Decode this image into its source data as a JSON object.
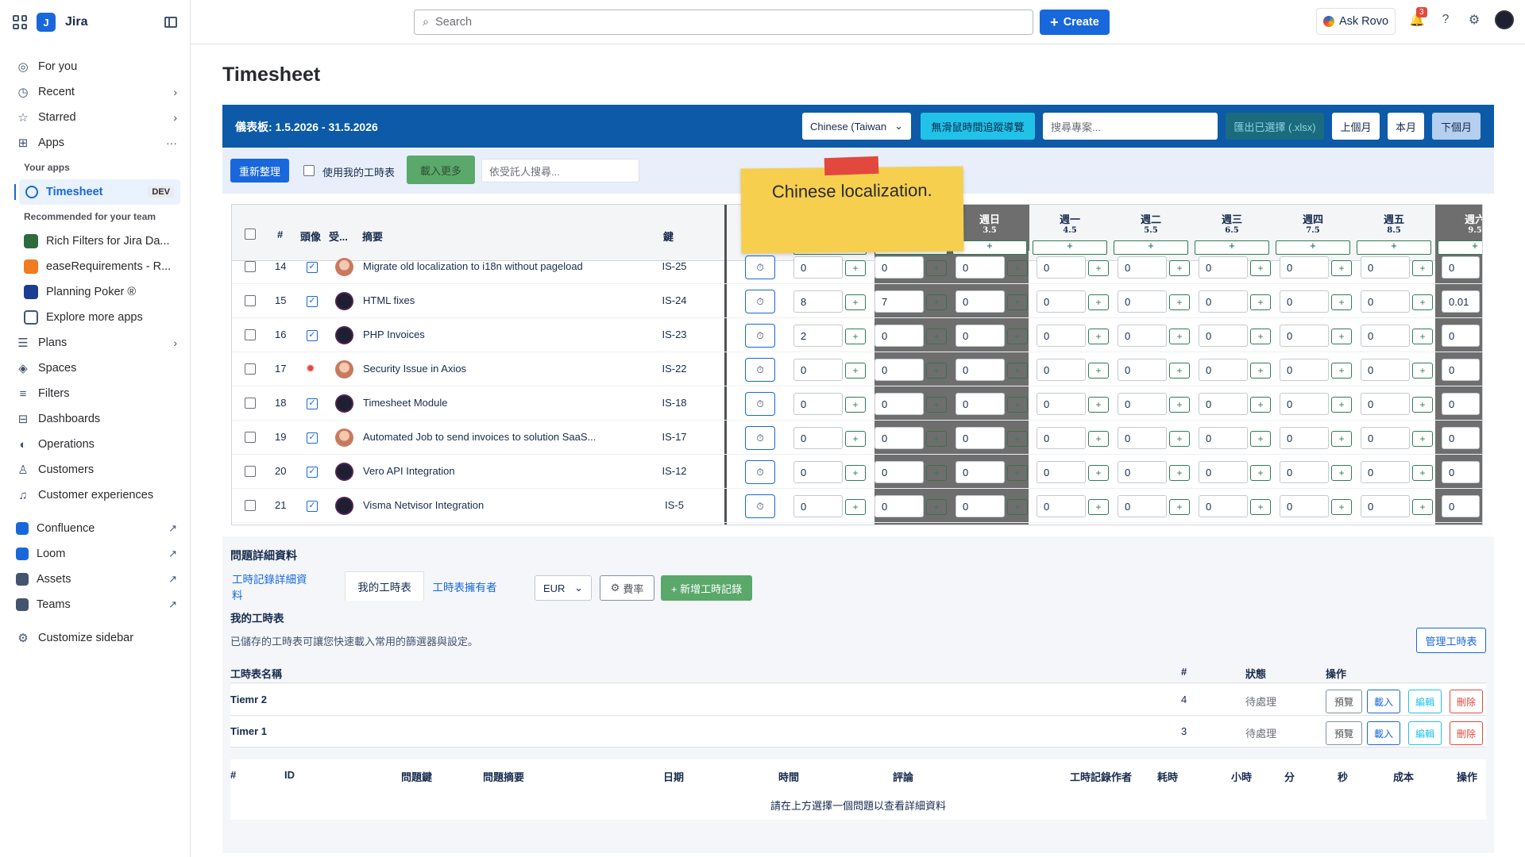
{
  "app": {
    "name": "Jira"
  },
  "sidebar": {
    "items": [
      {
        "label": "For you",
        "icon": "user-circle-icon"
      },
      {
        "label": "Recent",
        "icon": "clock-icon",
        "chevron": true
      },
      {
        "label": "Starred",
        "icon": "star-icon",
        "chevron": true
      },
      {
        "label": "Apps",
        "icon": "apps-icon",
        "more": true
      }
    ],
    "your_apps_label": "Your apps",
    "timesheet_app": {
      "label": "Timesheet",
      "badge": "DEV"
    },
    "recommended_label": "Recommended for your team",
    "recommended": [
      {
        "label": "Rich Filters for Jira Da...",
        "color": "#2e6b3e"
      },
      {
        "label": "easeRequirements - R...",
        "color": "#f07b20"
      },
      {
        "label": "Planning Poker ®",
        "color": "#1a3d8f"
      },
      {
        "label": "Explore more apps",
        "color": "#ffffff"
      }
    ],
    "items2": [
      {
        "label": "Plans",
        "icon": "plans-icon",
        "chevron": true
      },
      {
        "label": "Spaces",
        "icon": "spaces-icon"
      },
      {
        "label": "Filters",
        "icon": "filter-icon"
      },
      {
        "label": "Dashboards",
        "icon": "dashboard-icon"
      },
      {
        "label": "Operations",
        "icon": "operations-icon"
      },
      {
        "label": "Customers",
        "icon": "person-icon"
      },
      {
        "label": "Customer experiences",
        "icon": "headset-icon"
      }
    ],
    "external": [
      {
        "label": "Confluence",
        "color": "#1868db"
      },
      {
        "label": "Loom",
        "color": "#1868db"
      },
      {
        "label": "Assets",
        "color": "#44546f"
      },
      {
        "label": "Teams",
        "color": "#44546f"
      }
    ],
    "customize_label": "Customize sidebar"
  },
  "topbar": {
    "search_placeholder": "Search",
    "create_label": "Create",
    "ask_rovo_label": "Ask Rovo",
    "notification_count": "3"
  },
  "page": {
    "title": "Timesheet"
  },
  "bluebar": {
    "title": "儀表板:  1.5.2026 - 31.5.2026",
    "language": "Chinese (Taiwan",
    "tour_btn": "無滑鼠時間追蹤導覽",
    "search_placeholder": "搜尋專案...",
    "export_btn": "匯出已選擇 (.xlsx)",
    "prev_month": "上個月",
    "this_month": "本月",
    "next_month": "下個月"
  },
  "toolbar": {
    "refresh": "重新整理",
    "use_mine": "使用我的工時表",
    "load_more": "載入更多",
    "assignee_placeholder": "依受託人搜尋..."
  },
  "sticky": {
    "text": "Chinese localization."
  },
  "grid": {
    "headers": {
      "num": "#",
      "avatar": "頭像",
      "assignee": "受...",
      "summary": "摘要",
      "key": "鍵"
    },
    "days": [
      {
        "name": "週日",
        "date": "3.5",
        "dark": true
      },
      {
        "name": "週一",
        "date": "4.5",
        "dark": false
      },
      {
        "name": "週二",
        "date": "5.5",
        "dark": false
      },
      {
        "name": "週三",
        "date": "6.5",
        "dark": false
      },
      {
        "name": "週四",
        "date": "7.5",
        "dark": false
      },
      {
        "name": "週五",
        "date": "8.5",
        "dark": false
      },
      {
        "name": "週六",
        "date": "9.5",
        "dark": true
      }
    ],
    "rows": [
      {
        "num": "14",
        "type": "task",
        "avatar": "anime",
        "summary": "Migrate old localization to i18n without pageload",
        "key": "IS-25",
        "v": [
          "0",
          "0",
          "0",
          "0",
          "0",
          "0",
          "0",
          "0",
          "0"
        ]
      },
      {
        "num": "15",
        "type": "task",
        "avatar": "dark",
        "summary": "HTML fixes",
        "key": "IS-24",
        "v": [
          "8",
          "7",
          "0",
          "0",
          "0",
          "0",
          "0",
          "0",
          "0.01"
        ]
      },
      {
        "num": "16",
        "type": "task",
        "avatar": "dark",
        "summary": "PHP Invoices",
        "key": "IS-23",
        "v": [
          "2",
          "0",
          "0",
          "0",
          "0",
          "0",
          "0",
          "0",
          "0"
        ]
      },
      {
        "num": "17",
        "type": "bug",
        "avatar": "anime",
        "summary": "Security Issue in Axios",
        "key": "IS-22",
        "v": [
          "0",
          "0",
          "0",
          "0",
          "0",
          "0",
          "0",
          "0",
          "0"
        ]
      },
      {
        "num": "18",
        "type": "task",
        "avatar": "dark",
        "summary": "Timesheet Module",
        "key": "IS-18",
        "v": [
          "0",
          "0",
          "0",
          "0",
          "0",
          "0",
          "0",
          "0",
          "0"
        ]
      },
      {
        "num": "19",
        "type": "task",
        "avatar": "anime",
        "summary": "Automated Job to send invoices to solution SaaS...",
        "key": "IS-17",
        "v": [
          "0",
          "0",
          "0",
          "0",
          "0",
          "0",
          "0",
          "0",
          "0"
        ]
      },
      {
        "num": "20",
        "type": "task",
        "avatar": "dark",
        "summary": "Vero API Integration",
        "key": "IS-12",
        "v": [
          "0",
          "0",
          "0",
          "0",
          "0",
          "0",
          "0",
          "0",
          "0"
        ]
      },
      {
        "num": "21",
        "type": "task",
        "avatar": "dark",
        "summary": "Visma Netvisor Integration",
        "key": "IS-5",
        "v": [
          "0",
          "0",
          "0",
          "0",
          "0",
          "0",
          "0",
          "0",
          "0"
        ]
      }
    ]
  },
  "detail": {
    "title": "問題詳細資料",
    "tabs": [
      "工時記錄詳細資料",
      "我的工時表",
      "工時表擁有者"
    ],
    "currency": "EUR",
    "rate_label": "費率",
    "add_label": "+ 新增工時記錄",
    "subtitle": "我的工時表",
    "description": "已儲存的工時表可讓您快速載入常用的篩選器與設定。",
    "manage_label": "管理工時表",
    "table_headers": {
      "name": "工時表名稱",
      "count": "#",
      "status": "狀態",
      "actions": "操作"
    },
    "timesheets": [
      {
        "name": "Tiemr 2",
        "count": "4",
        "status": "待處理"
      },
      {
        "name": "Timer 1",
        "count": "3",
        "status": "待處理"
      }
    ],
    "action_labels": {
      "preview": "預覽",
      "load": "載入",
      "edit": "編輯",
      "delete": "刪除"
    },
    "worklog_headers": [
      "#",
      "ID",
      "問題鍵",
      "問題摘要",
      "日期",
      "時間",
      "評論",
      "工時記錄作者",
      "耗時",
      "小時",
      "分",
      "秒",
      "成本",
      "操作"
    ],
    "worklog_empty": "請在上方選擇一個問題以查看詳細資料"
  }
}
